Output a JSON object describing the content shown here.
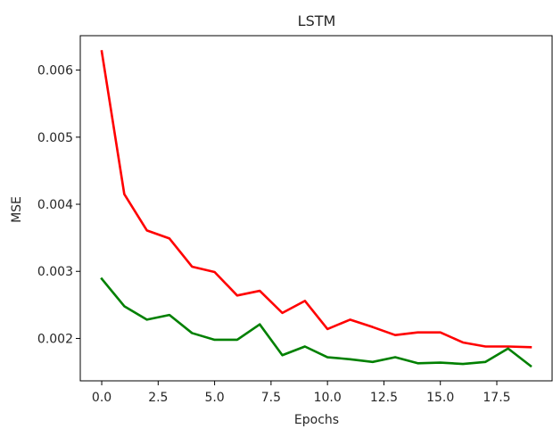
{
  "chart_data": {
    "type": "line",
    "title": "LSTM",
    "xlabel": "Epochs",
    "ylabel": "MSE",
    "xlim": [
      -0.95,
      19.95
    ],
    "ylim": [
      0.001368,
      0.006513
    ],
    "x_ticks": [
      0.0,
      2.5,
      5.0,
      7.5,
      10.0,
      12.5,
      15.0,
      17.5
    ],
    "x_tick_labels": [
      "0.0",
      "2.5",
      "5.0",
      "7.5",
      "10.0",
      "12.5",
      "15.0",
      "17.5"
    ],
    "y_ticks": [
      0.002,
      0.003,
      0.004,
      0.005,
      0.006
    ],
    "y_tick_labels": [
      "0.002",
      "0.003",
      "0.004",
      "0.005",
      "0.006"
    ],
    "grid": false,
    "legend": "none",
    "x": [
      0,
      1,
      2,
      3,
      4,
      5,
      6,
      7,
      8,
      9,
      10,
      11,
      12,
      13,
      14,
      15,
      16,
      17,
      18,
      19
    ],
    "series": [
      {
        "color": "#ff0000",
        "values": [
          0.00628,
          0.00415,
          0.00361,
          0.00349,
          0.00307,
          0.00299,
          0.00264,
          0.00271,
          0.00238,
          0.00256,
          0.00214,
          0.00228,
          0.00217,
          0.00205,
          0.00209,
          0.00209,
          0.00194,
          0.00188,
          0.00188,
          0.00187
        ]
      },
      {
        "color": "#008000",
        "values": [
          0.00289,
          0.00248,
          0.00228,
          0.00235,
          0.00208,
          0.00198,
          0.00198,
          0.00221,
          0.00175,
          0.00188,
          0.00172,
          0.00169,
          0.00165,
          0.00172,
          0.00163,
          0.00164,
          0.00162,
          0.00165,
          0.00185,
          0.00159
        ]
      }
    ]
  }
}
